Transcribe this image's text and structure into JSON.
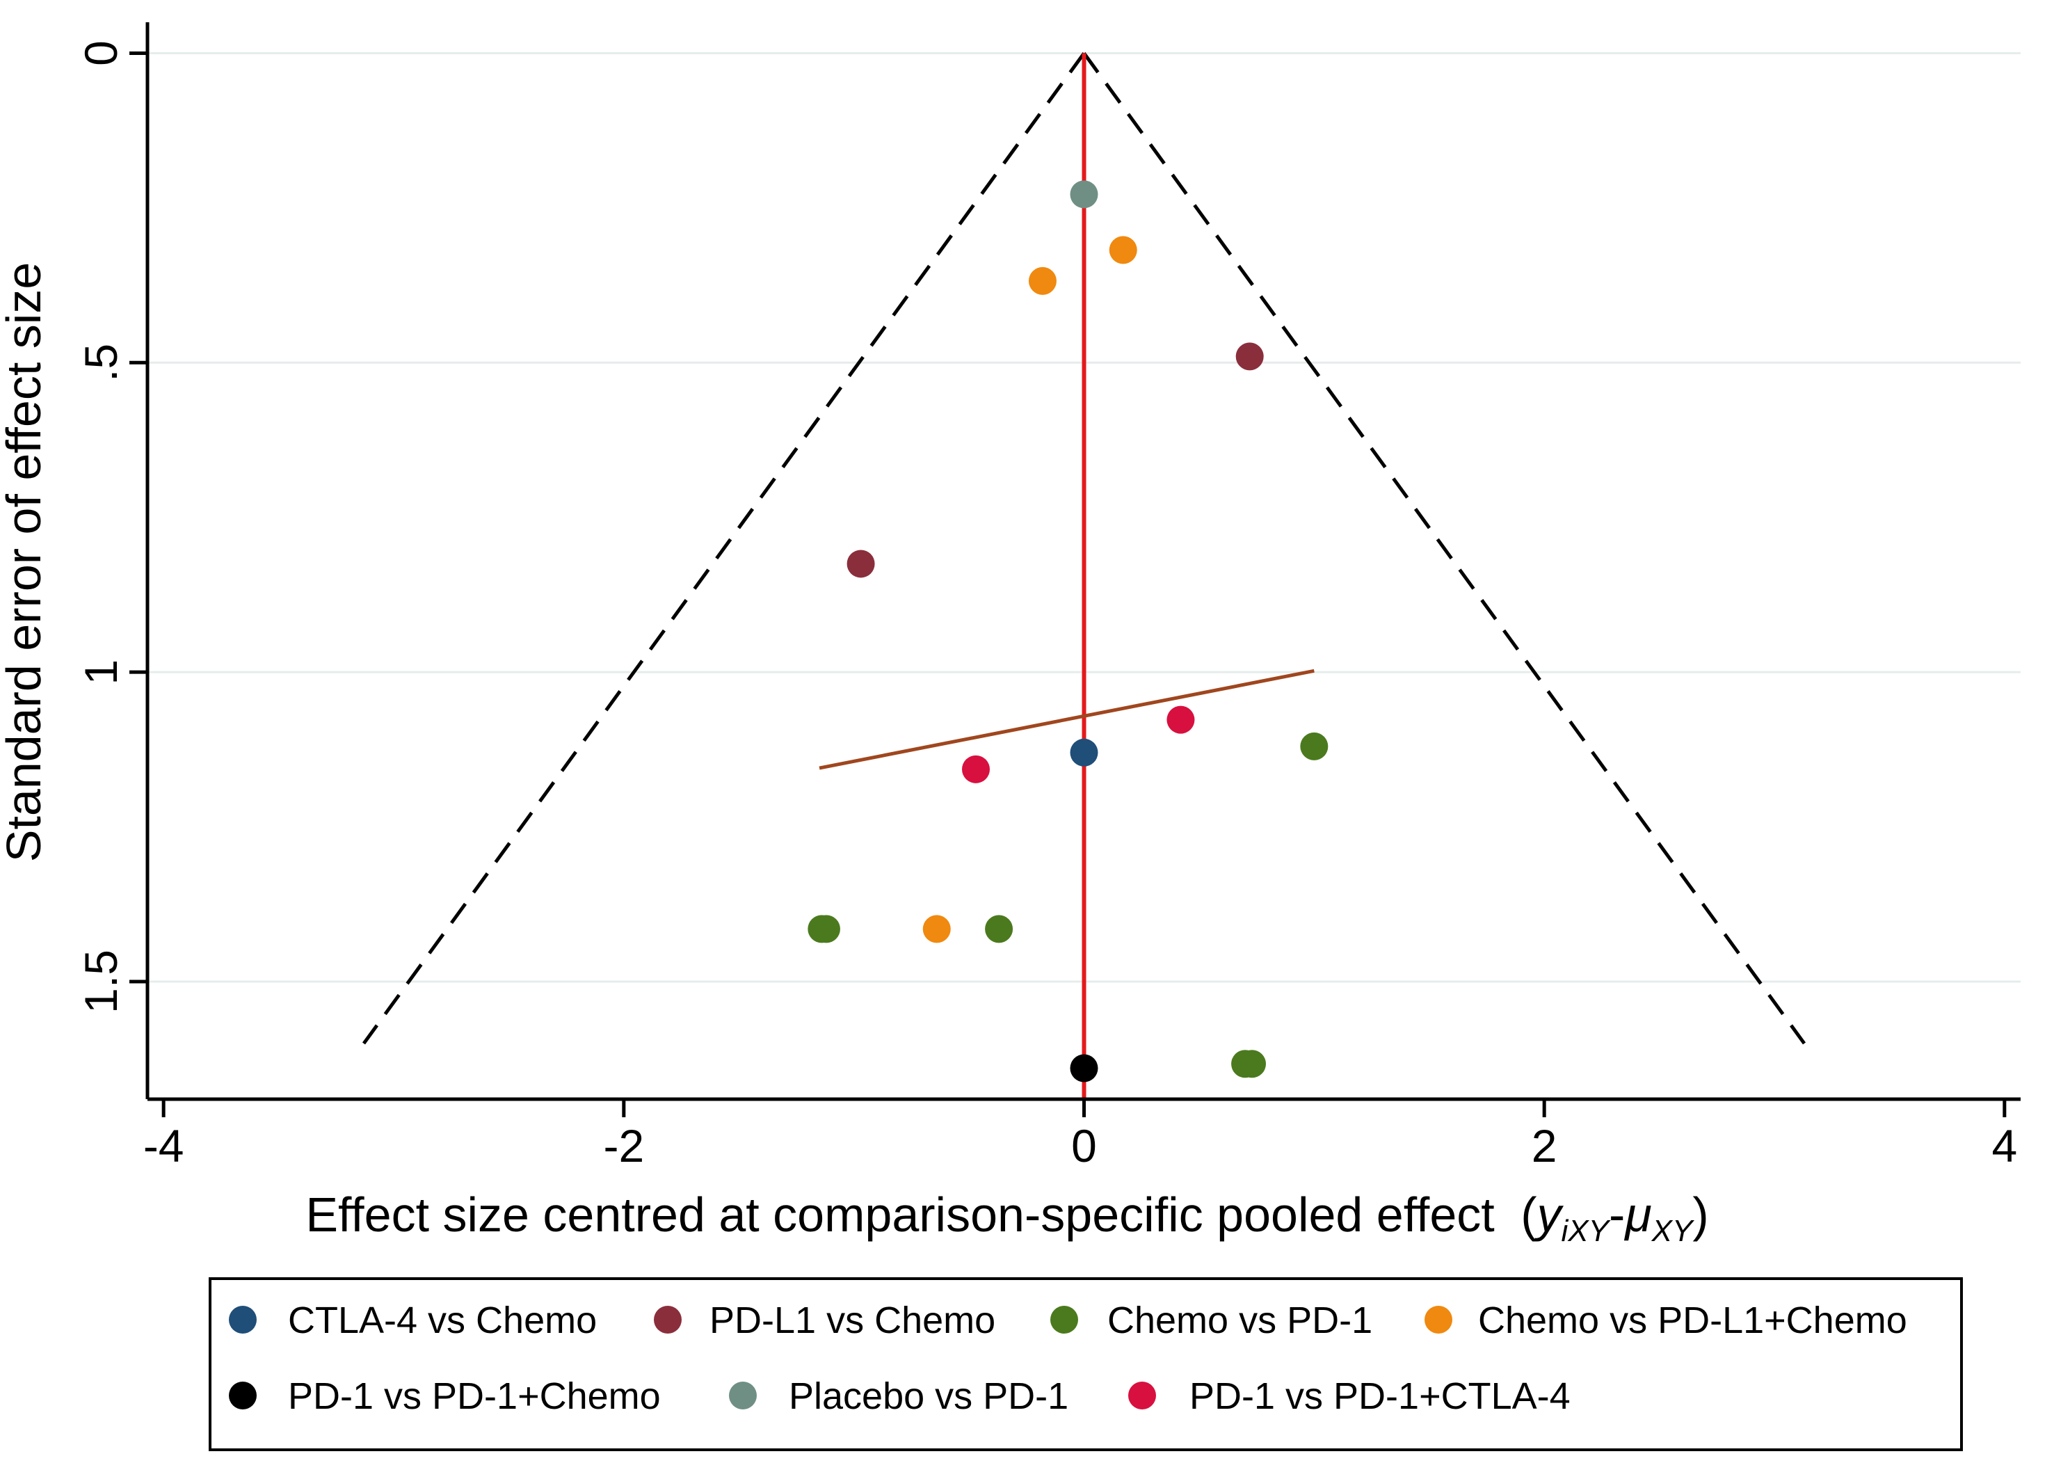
{
  "chart_data": {
    "type": "scatter",
    "title": "",
    "xlabel": "Effect size centred at comparison-specific pooled effect",
    "xlabel_math": {
      "open": "(",
      "y": "y",
      "y_sub": "iXY",
      "minus": "-",
      "mu": "μ",
      "mu_sub": "XY",
      "close": ")"
    },
    "ylabel": "Standard error of effect size",
    "y_reversed": true,
    "xlim": [
      -4.07,
      4.07
    ],
    "ylim": [
      -0.05,
      1.69
    ],
    "xticks": [
      {
        "value": -4,
        "label": "-4"
      },
      {
        "value": -2,
        "label": "-2"
      },
      {
        "value": 0,
        "label": "0"
      },
      {
        "value": 2,
        "label": "2"
      },
      {
        "value": 4,
        "label": "4"
      }
    ],
    "yticks": [
      {
        "value": 0,
        "label": "0"
      },
      {
        "value": 0.5,
        "label": ".5"
      },
      {
        "value": 1,
        "label": "1"
      },
      {
        "value": 1.5,
        "label": "1.5"
      }
    ],
    "grid": "horizontal",
    "funnel": {
      "apex": [
        0,
        0
      ],
      "left": [
        -3.13,
        1.6
      ],
      "right": [
        3.13,
        1.6
      ],
      "style": "dashed",
      "color": "#000000"
    },
    "zero_line": {
      "x": 0,
      "from": 0,
      "to": 1.69,
      "color": "#e31a1c"
    },
    "regression_line": {
      "from": [
        -1.15,
        1.155
      ],
      "to": [
        1.0,
        0.998
      ],
      "color": "#a0461e"
    },
    "series": [
      {
        "name": "CTLA-4 vs Chemo",
        "color": "#1f4e79",
        "points": [
          {
            "x": 0.0,
            "y": 1.13
          }
        ]
      },
      {
        "name": "PD-L1 vs Chemo",
        "color": "#8b2e3c",
        "points": [
          {
            "x": 0.72,
            "y": 0.49
          },
          {
            "x": -0.97,
            "y": 0.825
          }
        ]
      },
      {
        "name": "Chemo vs PD-1",
        "color": "#4b7a1e",
        "points": [
          {
            "x": 1.0,
            "y": 1.12
          },
          {
            "x": -1.14,
            "y": 1.415
          },
          {
            "x": -1.12,
            "y": 1.415
          },
          {
            "x": -0.37,
            "y": 1.415
          },
          {
            "x": 0.7,
            "y": 1.633
          },
          {
            "x": 0.73,
            "y": 1.633
          }
        ]
      },
      {
        "name": "Chemo vs PD-L1+Chemo",
        "color": "#f0890f",
        "points": [
          {
            "x": 0.17,
            "y": 0.318
          },
          {
            "x": -0.18,
            "y": 0.368
          },
          {
            "x": -0.64,
            "y": 1.415
          }
        ]
      },
      {
        "name": "PD-1 vs PD-1+Chemo",
        "color": "#000000",
        "points": [
          {
            "x": 0.0,
            "y": 1.64
          }
        ]
      },
      {
        "name": "Placebo vs PD-1",
        "color": "#6f8f85",
        "points": [
          {
            "x": 0.0,
            "y": 0.228
          }
        ]
      },
      {
        "name": "PD-1 vs PD-1+CTLA-4",
        "color": "#d8103f",
        "points": [
          {
            "x": 0.42,
            "y": 1.077
          },
          {
            "x": -0.47,
            "y": 1.157
          }
        ]
      }
    ],
    "legend": {
      "placement": "bottom",
      "columns": 4,
      "rows": 2
    }
  }
}
